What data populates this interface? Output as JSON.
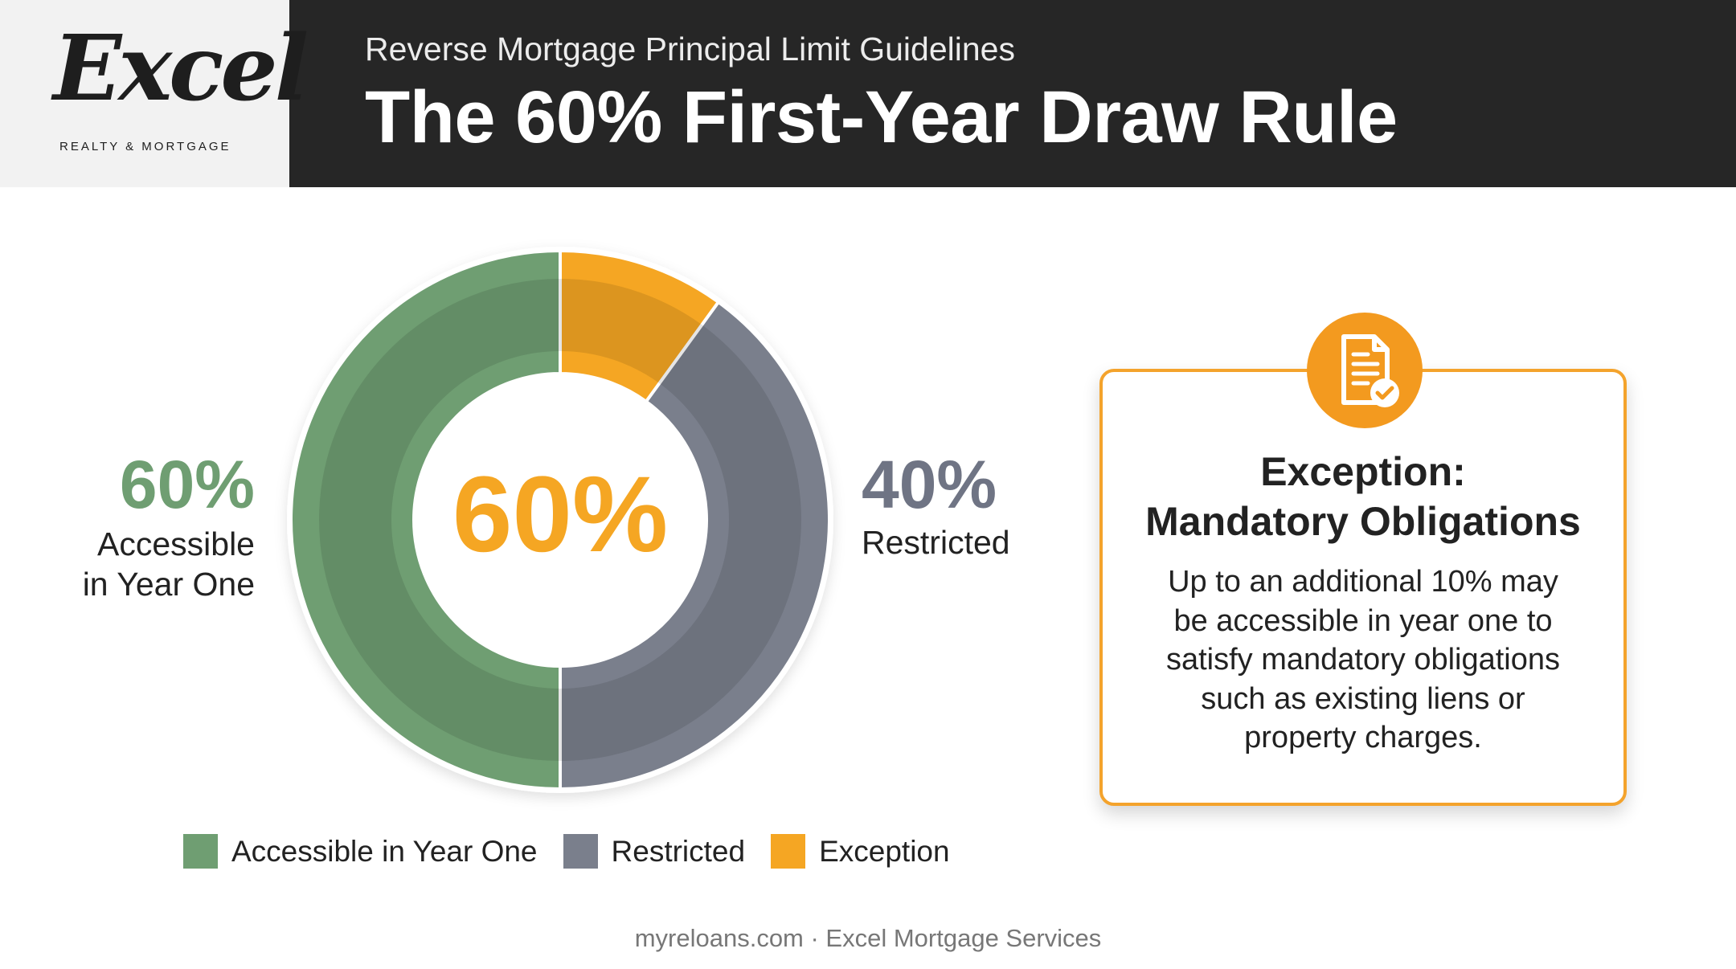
{
  "header": {
    "logo_text": "Excel",
    "logo_subtext": "REALTY & MORTGAGE",
    "kicker": "Reverse Mortgage Principal Limit Guidelines",
    "title": "The 60% First-Year Draw Rule"
  },
  "chart_data": {
    "type": "pie",
    "variant": "donut",
    "center_label": "60%",
    "slices": [
      {
        "label": "Exception",
        "value": 10,
        "color": "#f5a623"
      },
      {
        "label": "Restricted",
        "value": 40,
        "color": "#7a7f8c"
      },
      {
        "label": "Accessible in Year One",
        "value": 50,
        "color": "#6f9e72"
      }
    ],
    "annotations": {
      "left": {
        "value": "60%",
        "label_line1": "Accessible",
        "label_line2": "in Year One",
        "color": "#6f9e72"
      },
      "right": {
        "value": "40%",
        "label": "Restricted",
        "color": "#6f7484"
      }
    },
    "legend": [
      {
        "label": "Accessible in Year One",
        "color": "#6f9e72"
      },
      {
        "label": "Restricted",
        "color": "#7a7f8c"
      },
      {
        "label": "Exception",
        "color": "#f5a623"
      }
    ],
    "legend_position": "bottom"
  },
  "callout": {
    "icon": "document-check-icon",
    "title_line1": "Exception:",
    "title_line2": "Mandatory Obligations",
    "body": [
      "Up to an additional 10% may",
      "be accessible in year one to",
      "satisfy mandatory obligations",
      "such as existing liens or",
      "property charges."
    ],
    "accent": "#f39a1f"
  },
  "footer": {
    "text": "myreloans.com · Excel Mortgage Services"
  }
}
